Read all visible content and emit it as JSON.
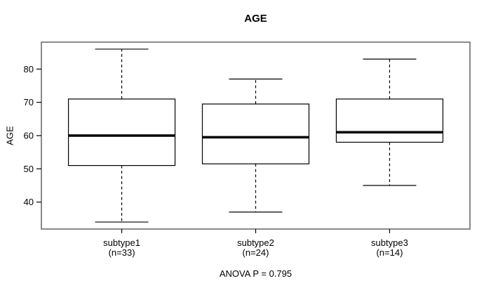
{
  "chart_data": {
    "type": "box",
    "title": "AGE",
    "ylabel": "AGE",
    "footnote": "ANOVA P = 0.795",
    "yticks": [
      40,
      50,
      60,
      70,
      80
    ],
    "ylim": [
      31.9,
      88.1
    ],
    "grid": false,
    "legend": "none",
    "groups": [
      {
        "label": "subtype1",
        "sublabel": "(n=33)",
        "whisker_low": 34,
        "q1": 51,
        "median": 60,
        "q3": 71,
        "whisker_high": 86
      },
      {
        "label": "subtype2",
        "sublabel": "(n=24)",
        "whisker_low": 37,
        "q1": 51.5,
        "median": 59.5,
        "q3": 69.5,
        "whisker_high": 77
      },
      {
        "label": "subtype3",
        "sublabel": "(n=14)",
        "whisker_low": 45,
        "q1": 58,
        "median": 61,
        "q3": 71,
        "whisker_high": 83
      }
    ],
    "colors": {
      "frame": "#7e7e7e",
      "line": "#000000",
      "box_fill": "#ffffff",
      "background": "#ffffff",
      "text": "#000000"
    }
  }
}
